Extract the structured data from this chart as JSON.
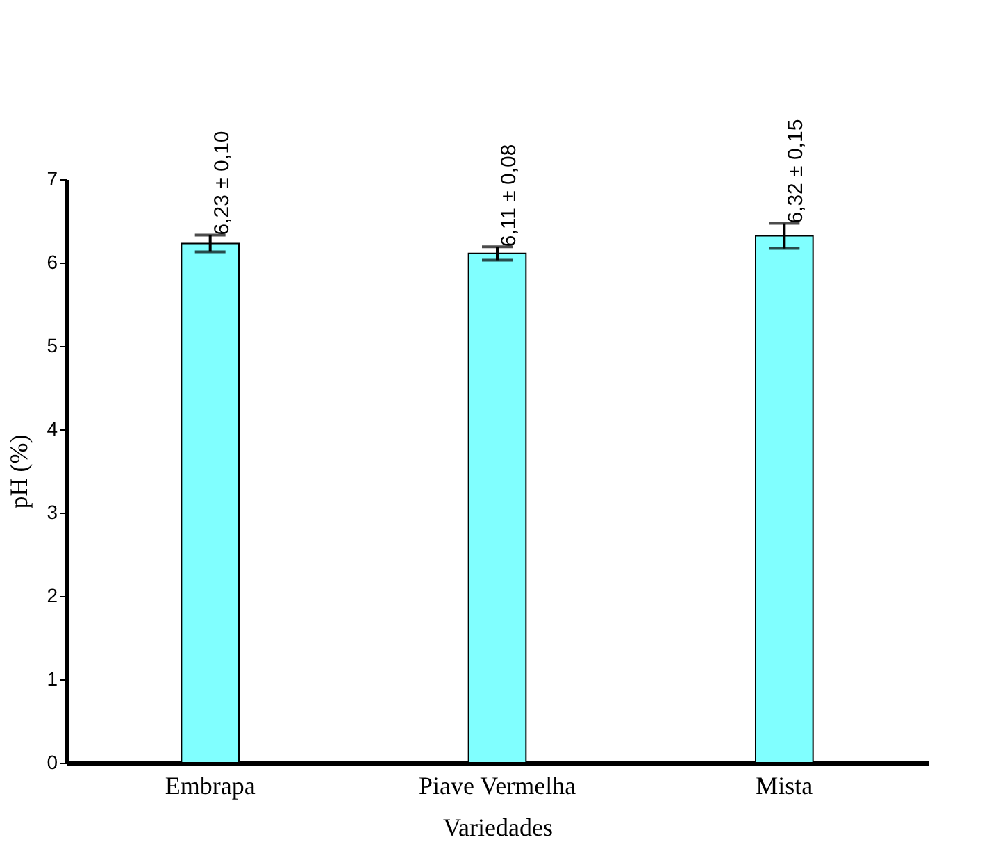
{
  "chart_data": {
    "type": "bar",
    "xlabel": "Variedades",
    "ylabel": "pH (%)",
    "categories": [
      "Embrapa",
      "Piave Vermelha",
      "Mista"
    ],
    "values": [
      6.23,
      6.11,
      6.32
    ],
    "errors": [
      0.1,
      0.08,
      0.15
    ],
    "value_labels": [
      "6,23 ± 0,10",
      "6,11 ± 0,08",
      "6,32 ± 0,15"
    ],
    "color": "#80ffff",
    "ylim": [
      0,
      7
    ],
    "yticks": [
      0,
      1,
      2,
      3,
      4,
      5,
      6,
      7
    ],
    "grid": false
  }
}
